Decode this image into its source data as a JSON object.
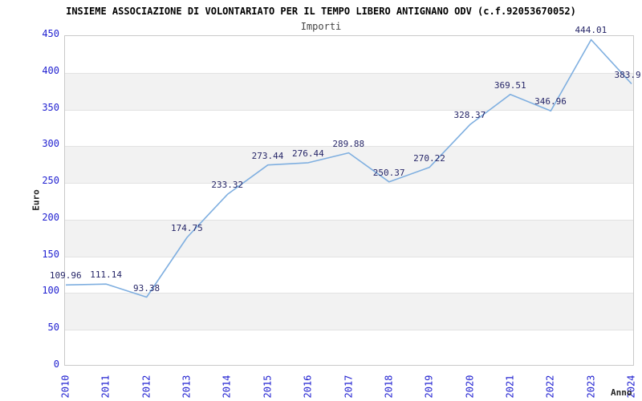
{
  "title": "INSIEME ASSOCIAZIONE DI VOLONTARIATO PER IL TEMPO LIBERO ANTIGNANO ODV (c.f.92053670052)",
  "subtitle": "Importi",
  "chart_data": {
    "type": "line",
    "x": [
      "2010",
      "2011",
      "2012",
      "2013",
      "2014",
      "2015",
      "2016",
      "2017",
      "2018",
      "2019",
      "2020",
      "2021",
      "2022",
      "2023",
      "2024"
    ],
    "series": [
      {
        "name": "Importi",
        "values": [
          109.96,
          111.14,
          93.38,
          174.75,
          233.32,
          273.44,
          276.44,
          289.88,
          250.37,
          270.22,
          328.37,
          369.51,
          346.96,
          444.01,
          383.9
        ]
      }
    ],
    "point_labels": [
      "109.96",
      "111.14",
      "93.38",
      "174.75",
      "233.32",
      "273.44",
      "276.44",
      "289.88",
      "250.37",
      "270.22",
      "328.37",
      "369.51",
      "346.96",
      "444.01",
      "383.9"
    ],
    "xlabel": "Anno",
    "ylabel": "Euro",
    "ylim": [
      0,
      450
    ],
    "ytick_step": 50,
    "yticks": [
      "0",
      "50",
      "100",
      "150",
      "200",
      "250",
      "300",
      "350",
      "400",
      "450"
    ],
    "grid": "alternating-horizontal-bands",
    "legend": "none"
  },
  "colors": {
    "line": "#7fafe0",
    "tick_label": "#1f1fd0",
    "data_label": "#262668",
    "band": "#f2f2f2",
    "grid_line": "#e2e2e2",
    "plot_border": "#c9c9c9",
    "title": "#000000",
    "subtitle": "#444444",
    "axis_title": "#222222",
    "background": "#ffffff"
  }
}
